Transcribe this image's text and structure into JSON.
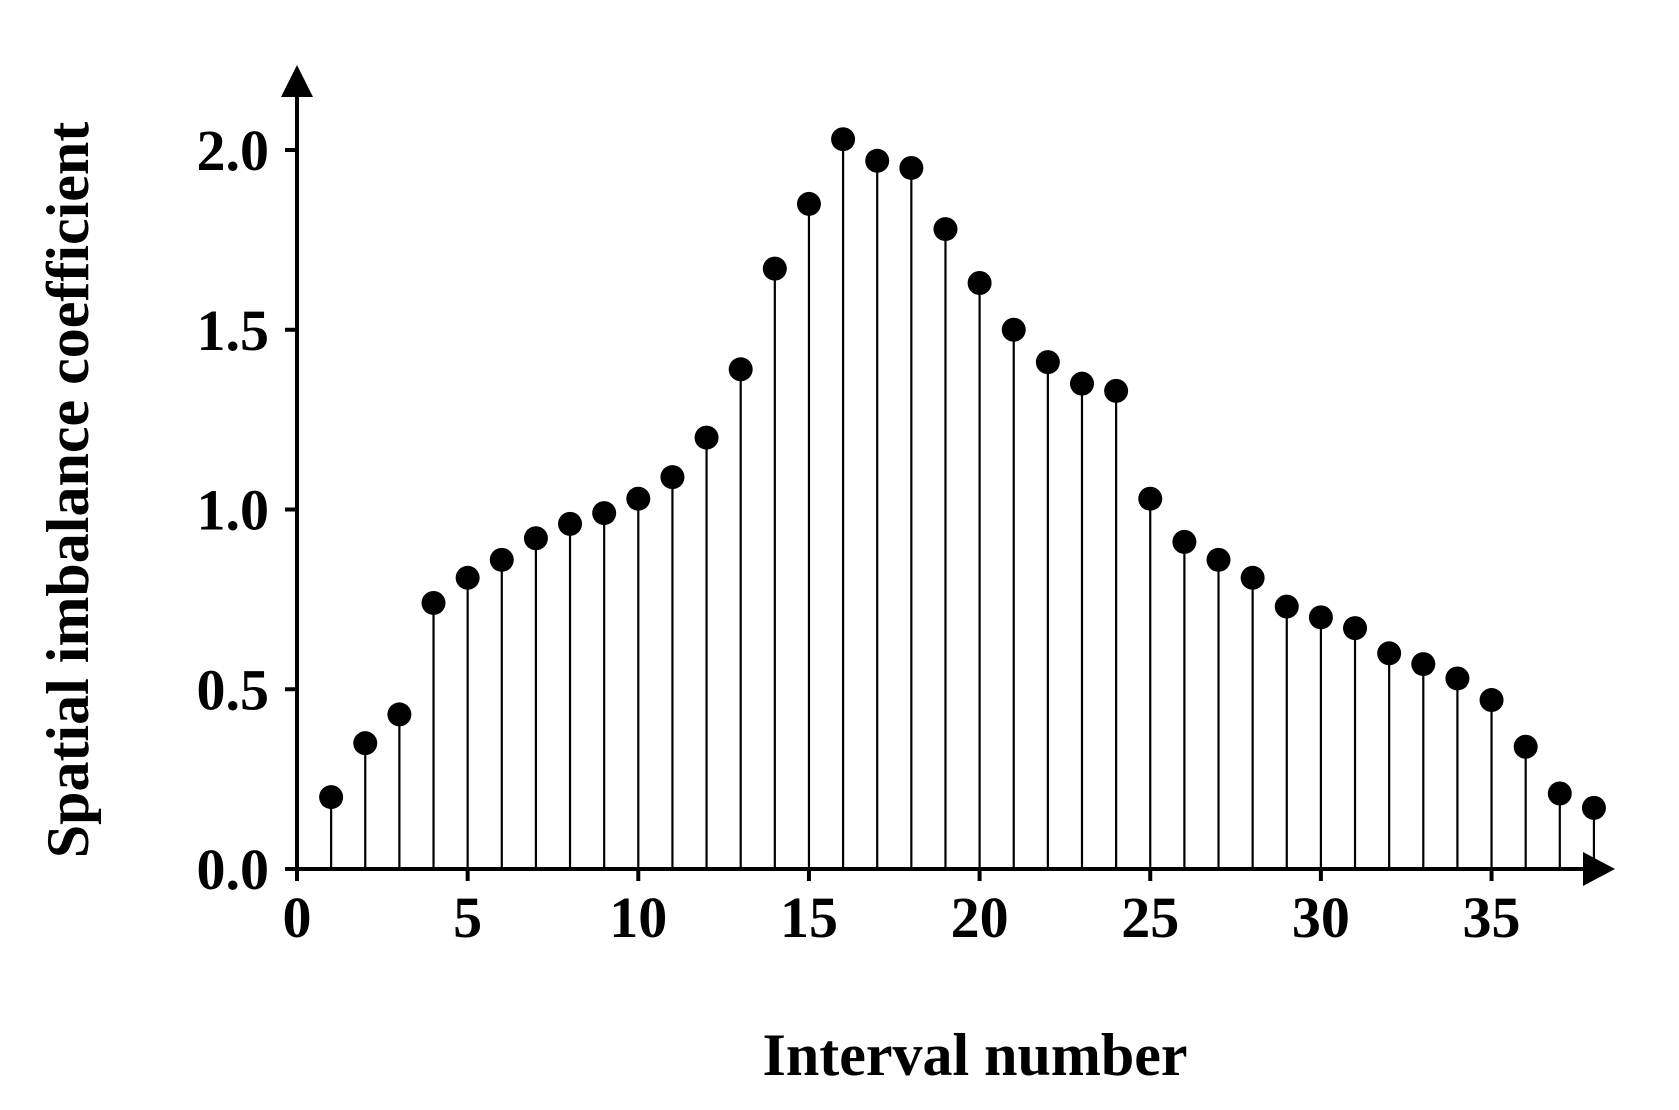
{
  "chart_data": {
    "type": "scatter",
    "style": "stem",
    "title": "",
    "xlabel": "Interval number",
    "ylabel": "Spatial imbalance coefficient",
    "xlim": [
      0,
      39
    ],
    "ylim": [
      0,
      2.2
    ],
    "xticks": [
      0,
      5,
      10,
      15,
      20,
      25,
      30,
      35
    ],
    "xtick_labels": [
      "0",
      "5",
      "10",
      "15",
      "20",
      "25",
      "30",
      "35"
    ],
    "yticks": [
      0.0,
      0.5,
      1.0,
      1.5,
      2.0
    ],
    "ytick_labels": [
      "0.0",
      "0.5",
      "1.0",
      "1.5",
      "2.0"
    ],
    "grid": false,
    "axis_arrows": true,
    "colors": {
      "marker": "#000000",
      "axis": "#000000"
    },
    "series": [
      {
        "x": [
          1,
          2,
          3,
          4,
          5,
          6,
          7,
          8,
          9,
          10,
          11,
          12,
          13,
          14,
          15,
          16,
          17,
          18,
          19,
          20,
          21,
          22,
          23,
          24,
          25,
          26,
          27,
          28,
          29,
          30,
          31,
          32,
          33,
          34,
          35,
          36,
          37,
          38
        ],
        "values": [
          0.2,
          0.35,
          0.43,
          0.74,
          0.81,
          0.86,
          0.92,
          0.96,
          0.99,
          1.03,
          1.09,
          1.2,
          1.39,
          1.67,
          1.85,
          2.03,
          1.97,
          1.95,
          1.78,
          1.63,
          1.5,
          1.41,
          1.35,
          1.33,
          1.03,
          0.91,
          0.86,
          0.81,
          0.73,
          0.7,
          0.67,
          0.6,
          0.57,
          0.53,
          0.47,
          0.34,
          0.21,
          0.17
        ]
      }
    ]
  }
}
